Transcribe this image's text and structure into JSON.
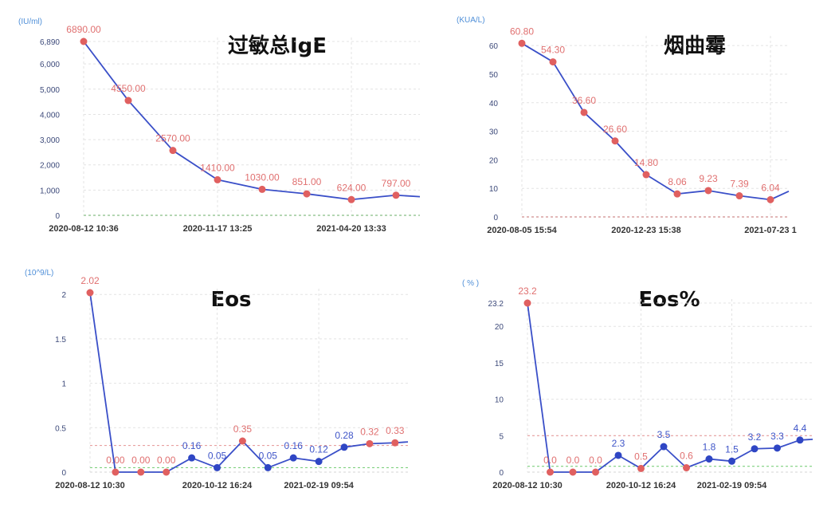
{
  "chart_data": [
    {
      "type": "line",
      "title": "过敏总IgE",
      "unit": "(IU/ml)",
      "ylim": [
        0,
        6890
      ],
      "yticks": [
        "0",
        "1,000",
        "2,000",
        "3,000",
        "4,000",
        "5,000",
        "6,000",
        "6,890"
      ],
      "ytick_values": [
        0,
        1000,
        2000,
        3000,
        4000,
        5000,
        6000,
        6890
      ],
      "x_tick_labels": [
        {
          "index": 0,
          "label": "2020-08-12 10:36"
        },
        {
          "index": 3,
          "label": "2020-11-17 13:25"
        },
        {
          "index": 6,
          "label": "2021-04-20 13:33"
        }
      ],
      "series": [
        {
          "values": [
            6890,
            4550,
            2570,
            1410,
            1030,
            851,
            624,
            797
          ],
          "labels": [
            "6890.00",
            "4550.00",
            "2570.00",
            "1410.00",
            "1030.00",
            "851.00",
            "624.00",
            "797.00"
          ],
          "point_colors": [
            "red",
            "red",
            "red",
            "red",
            "red",
            "red",
            "red",
            "red"
          ],
          "trail_value": 740
        }
      ],
      "reference_lines": [],
      "baseline_color": "#9cc89a",
      "grid": true
    },
    {
      "type": "line",
      "title": "烟曲霉",
      "unit": "(KUA/L)",
      "ylim": [
        0,
        62
      ],
      "yticks": [
        "0",
        "10",
        "20",
        "30",
        "40",
        "50",
        "60"
      ],
      "ytick_values": [
        0,
        10,
        20,
        30,
        40,
        50,
        60
      ],
      "x_tick_labels": [
        {
          "index": 0,
          "label": "2020-08-05 15:54"
        },
        {
          "index": 4,
          "label": "2020-12-23 15:38"
        },
        {
          "index": 8,
          "label": "2021-07-23 1"
        }
      ],
      "series": [
        {
          "values": [
            60.8,
            54.3,
            36.6,
            26.6,
            14.8,
            8.06,
            9.23,
            7.39,
            6.04
          ],
          "labels": [
            "60.80",
            "54.30",
            "36.60",
            "26.60",
            "14.80",
            "8.06",
            "9.23",
            "7.39",
            "6.04"
          ],
          "point_colors": [
            "red",
            "red",
            "red",
            "red",
            "red",
            "red",
            "red",
            "red",
            "red"
          ],
          "trail_value": 9
        }
      ],
      "reference_lines": [],
      "baseline_color": "#d9a0a0",
      "grid": true
    },
    {
      "type": "line",
      "unit": "(10^9/L)",
      "title": "Eos",
      "ylim": [
        0,
        2.02
      ],
      "yticks": [
        "0",
        "0.5",
        "1",
        "1.5",
        "2"
      ],
      "ytick_values": [
        0,
        0.5,
        1,
        1.5,
        2
      ],
      "x_tick_labels": [
        {
          "index": 0,
          "label": "2020-08-12 10:30"
        },
        {
          "index": 5,
          "label": "2020-10-12 16:24"
        },
        {
          "index": 9,
          "label": "2021-02-19 09:54"
        }
      ],
      "series": [
        {
          "values": [
            2.02,
            0.0,
            0.0,
            0.0,
            0.16,
            0.05,
            0.35,
            0.05,
            0.16,
            0.12,
            0.28,
            0.32,
            0.33
          ],
          "labels": [
            "2.02",
            "0.00",
            "0.00",
            "0.00",
            "0.16",
            "0.05",
            "0.35",
            "0.05",
            "0.16",
            "0.12",
            "0.28",
            "0.32",
            "0.33"
          ],
          "point_colors": [
            "red",
            "red",
            "red",
            "red",
            "blue",
            "blue",
            "red",
            "blue",
            "blue",
            "blue",
            "blue",
            "red",
            "red"
          ],
          "trail_value": 0.34
        }
      ],
      "reference_lines": [
        {
          "value": 0.3,
          "color": "#e8a0a0"
        },
        {
          "value": 0.05,
          "color": "#7fd07f"
        }
      ],
      "baseline_color": "#e3e3e3",
      "grid": true
    },
    {
      "type": "line",
      "unit": "( % )",
      "title": "Eos%",
      "ylim": [
        0,
        23.2
      ],
      "yticks": [
        "0",
        "5",
        "10",
        "15",
        "20",
        "23.2"
      ],
      "ytick_values": [
        0,
        5,
        10,
        15,
        20,
        23.2
      ],
      "x_tick_labels": [
        {
          "index": 0,
          "label": "2020-08-12 10:30"
        },
        {
          "index": 5,
          "label": "2020-10-12 16:24"
        },
        {
          "index": 9,
          "label": "2021-02-19 09:54"
        }
      ],
      "series": [
        {
          "values": [
            23.2,
            0.0,
            0.0,
            0.0,
            2.3,
            0.5,
            3.5,
            0.6,
            1.8,
            1.5,
            3.2,
            3.3,
            4.4
          ],
          "labels": [
            "23.2",
            "0.0",
            "0.0",
            "0.0",
            "2.3",
            "0.5",
            "3.5",
            "0.6",
            "1.8",
            "1.5",
            "3.2",
            "3.3",
            "4.4"
          ],
          "point_colors": [
            "red",
            "red",
            "red",
            "red",
            "blue",
            "red",
            "blue",
            "red",
            "blue",
            "blue",
            "blue",
            "blue",
            "blue"
          ],
          "trail_value": 4.5
        }
      ],
      "reference_lines": [
        {
          "value": 5,
          "color": "#e8a0a0"
        },
        {
          "value": 0.8,
          "color": "#7fd07f"
        }
      ],
      "baseline_color": "#e3e3e3",
      "grid": true
    }
  ],
  "colors": {
    "line": "#3a4fc8",
    "point_red": "#e06060",
    "point_blue": "#2f46c4",
    "label_red": "#e07070",
    "label_blue": "#3f55c8"
  }
}
